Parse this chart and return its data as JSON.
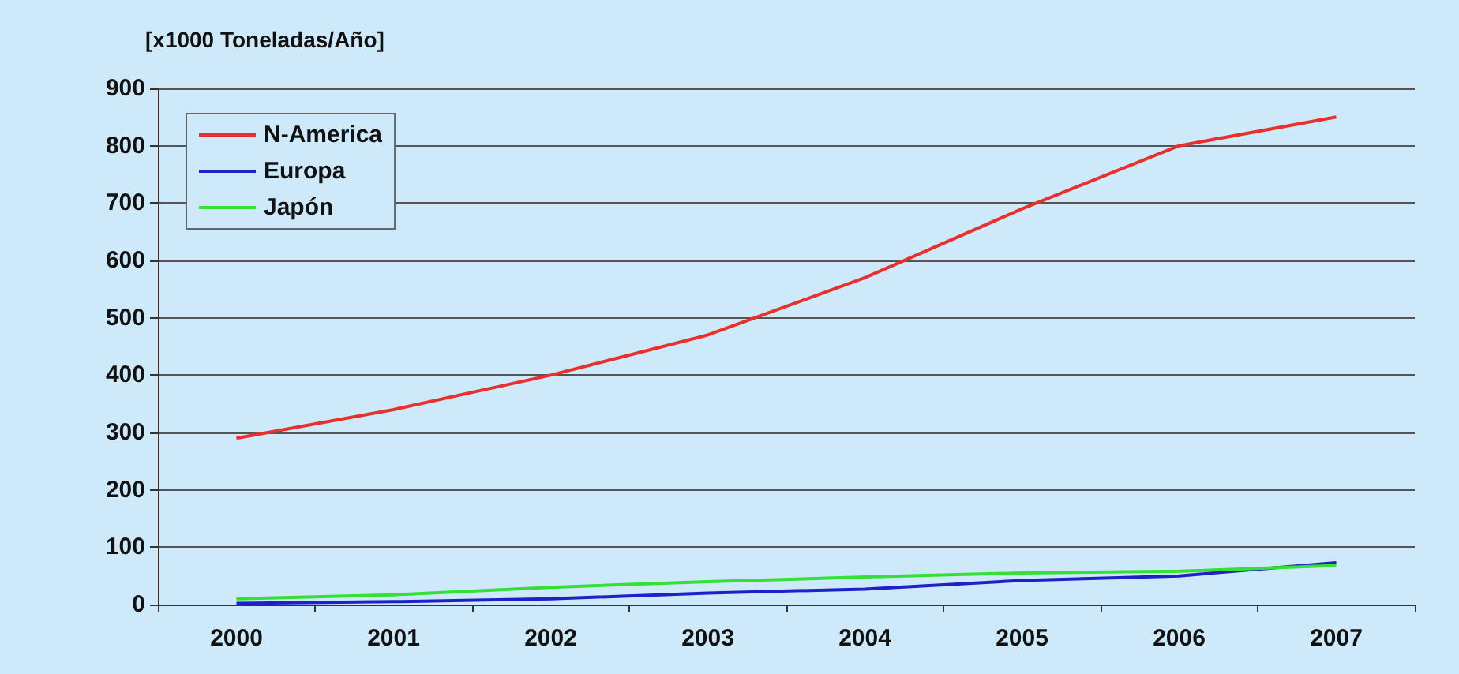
{
  "chart_data": {
    "type": "line",
    "ylabel": "[x1000 Toneladas/Año]",
    "categories": [
      "2000",
      "2001",
      "2002",
      "2003",
      "2004",
      "2005",
      "2006",
      "2007"
    ],
    "series": [
      {
        "name": "N-America",
        "color": "#e8302c",
        "values": [
          290,
          340,
          400,
          470,
          570,
          690,
          800,
          850
        ]
      },
      {
        "name": "Europa",
        "color": "#2020c8",
        "values": [
          2,
          5,
          10,
          20,
          27,
          42,
          50,
          73
        ]
      },
      {
        "name": "Japón",
        "color": "#33e033",
        "values": [
          10,
          17,
          30,
          40,
          48,
          55,
          58,
          68
        ]
      }
    ],
    "ylim": [
      0,
      900
    ],
    "yticks": [
      0,
      100,
      200,
      300,
      400,
      500,
      600,
      700,
      800,
      900
    ],
    "grid": "y",
    "legend": "top left",
    "marker": "none"
  }
}
